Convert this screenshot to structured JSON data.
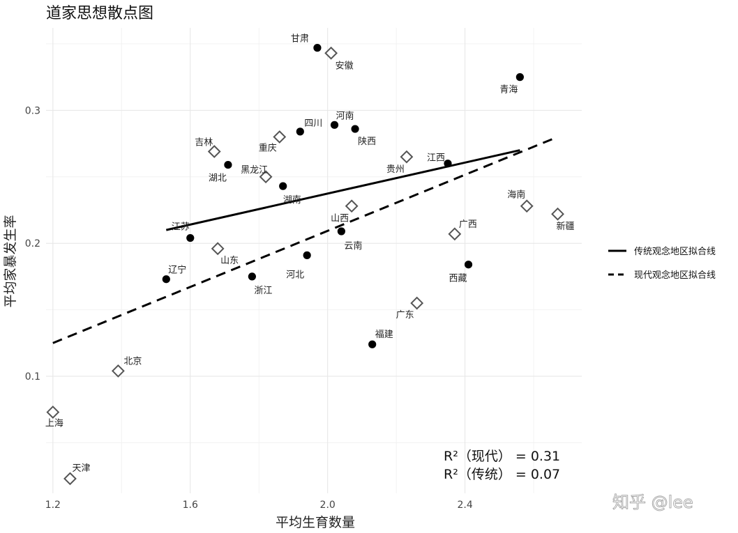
{
  "chart_data": {
    "type": "scatter",
    "title": "道家思想散点图",
    "xlabel": "平均生育数量",
    "ylabel": "平均家暴发生率",
    "xlim": [
      1.18,
      2.74
    ],
    "ylim": [
      0.012,
      0.362
    ],
    "x_ticks": [
      1.2,
      1.6,
      2.0,
      2.4
    ],
    "y_ticks": [
      0.1,
      0.2,
      0.3
    ],
    "x_tick_labels": [
      "1.2",
      "1.6",
      "2.0",
      "2.4"
    ],
    "y_tick_labels": [
      "0.1",
      "0.2",
      "0.3"
    ],
    "grid": true,
    "legend_position": "right",
    "series": [
      {
        "group": "traditional",
        "marker": "filled-circle",
        "points": [
          {
            "label": "甘肃",
            "x": 1.97,
            "y": 0.347
          },
          {
            "label": "青海",
            "x": 2.56,
            "y": 0.325
          },
          {
            "label": "四川",
            "x": 1.92,
            "y": 0.284
          },
          {
            "label": "河南",
            "x": 2.02,
            "y": 0.289
          },
          {
            "label": "陕西",
            "x": 2.08,
            "y": 0.286
          },
          {
            "label": "湖北",
            "x": 1.71,
            "y": 0.259
          },
          {
            "label": "湖南",
            "x": 1.87,
            "y": 0.243
          },
          {
            "label": "江西",
            "x": 2.35,
            "y": 0.26
          },
          {
            "label": "江苏",
            "x": 1.6,
            "y": 0.204
          },
          {
            "label": "云南",
            "x": 2.04,
            "y": 0.209
          },
          {
            "label": "辽宁",
            "x": 1.53,
            "y": 0.173
          },
          {
            "label": "浙江",
            "x": 1.78,
            "y": 0.175
          },
          {
            "label": "河北",
            "x": 1.94,
            "y": 0.191
          },
          {
            "label": "西藏",
            "x": 2.41,
            "y": 0.184
          },
          {
            "label": "福建",
            "x": 2.13,
            "y": 0.124
          }
        ]
      },
      {
        "group": "modern",
        "marker": "open-diamond",
        "points": [
          {
            "label": "安徽",
            "x": 2.01,
            "y": 0.343
          },
          {
            "label": "吉林",
            "x": 1.67,
            "y": 0.269
          },
          {
            "label": "重庆",
            "x": 1.86,
            "y": 0.28
          },
          {
            "label": "黑龙江",
            "x": 1.82,
            "y": 0.25
          },
          {
            "label": "贵州",
            "x": 2.23,
            "y": 0.265
          },
          {
            "label": "海南",
            "x": 2.58,
            "y": 0.228
          },
          {
            "label": "新疆",
            "x": 2.67,
            "y": 0.222
          },
          {
            "label": "山西",
            "x": 2.07,
            "y": 0.228
          },
          {
            "label": "广西",
            "x": 2.37,
            "y": 0.207
          },
          {
            "label": "山东",
            "x": 1.68,
            "y": 0.196
          },
          {
            "label": "广东",
            "x": 2.26,
            "y": 0.155
          },
          {
            "label": "北京",
            "x": 1.39,
            "y": 0.104
          },
          {
            "label": "上海",
            "x": 1.2,
            "y": 0.073
          },
          {
            "label": "天津",
            "x": 1.25,
            "y": 0.023
          }
        ]
      }
    ],
    "fit_lines": [
      {
        "name": "传统观念地区拟合线",
        "style": "solid",
        "x": [
          1.53,
          2.56
        ],
        "y": [
          0.21,
          0.27
        ]
      },
      {
        "name": "现代观念地区拟合线",
        "style": "dashed",
        "x": [
          1.2,
          2.67
        ],
        "y": [
          0.125,
          0.28
        ]
      }
    ],
    "annotations": [
      "R²（现代）  = 0.31",
      "R²（传统）  = 0.07"
    ]
  },
  "watermark": "知乎 @lee"
}
